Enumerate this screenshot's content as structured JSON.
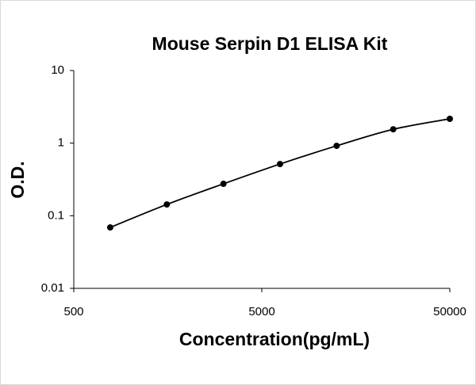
{
  "chart_data": {
    "type": "line",
    "title": "Mouse Serpin D1 ELISA Kit",
    "x_label": "Concentration(pg/mL)",
    "y_label": "O.D.",
    "x_scale": "log",
    "y_scale": "log",
    "grid": false,
    "x": [
      781.25,
      1562.5,
      3125,
      6250,
      12500,
      25000,
      50000
    ],
    "series": [
      {
        "color": "#000000",
        "values": [
          0.069,
          0.143,
          0.275,
          0.515,
          0.918,
          1.55,
          2.16
        ]
      }
    ],
    "xlim": [
      500,
      50000
    ],
    "xticks": [
      500,
      5000,
      50000
    ],
    "ylim": [
      0.01,
      10
    ],
    "yticks": [
      0.01,
      0.1,
      1,
      10
    ]
  }
}
